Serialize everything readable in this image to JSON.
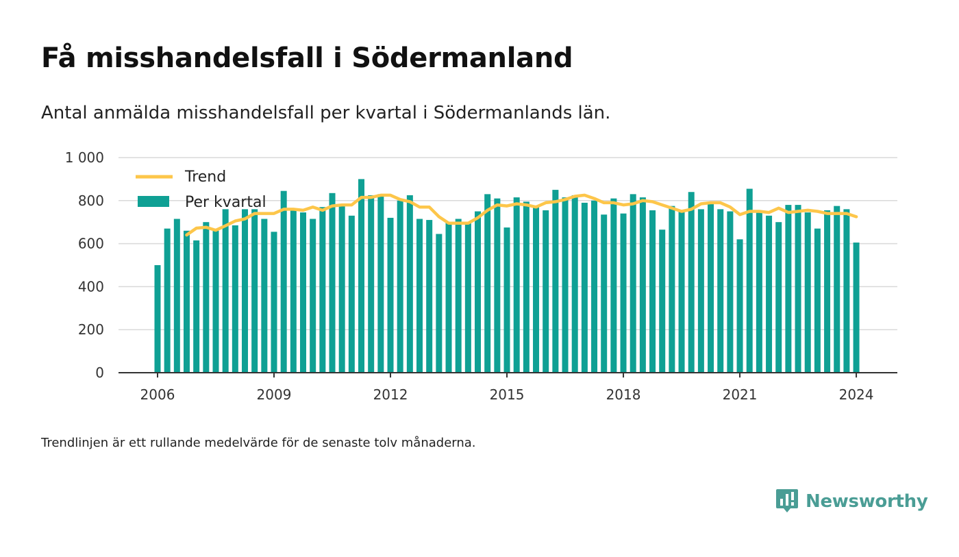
{
  "title": "Få misshandelsfall i Södermanland",
  "subtitle": "Antal anmälda misshandelsfall per kvartal i Södermanlands län.",
  "footnote": "Trendlinjen är ett rullande medelvärde för de senaste tolv månaderna.",
  "brand": {
    "name": "Newsworthy",
    "icon": "newsworthy-logo-icon",
    "color": "#4a9d95"
  },
  "colors": {
    "bars": "#0fa094",
    "trend": "#fdc64a",
    "grid": "#d9d9d9",
    "axis": "#333333"
  },
  "chart_data": {
    "type": "bar",
    "title": "",
    "xlabel": "",
    "ylabel": "",
    "ylim": [
      0,
      1000
    ],
    "y_ticks": [
      0,
      200,
      400,
      600,
      800,
      1000
    ],
    "y_tick_labels": [
      "0",
      "200",
      "400",
      "600",
      "800",
      "1 000"
    ],
    "x_ticks": [
      "2006",
      "2009",
      "2012",
      "2015",
      "2018",
      "2021",
      "2024"
    ],
    "grid": true,
    "legend_position": "top-left",
    "legend": [
      "Trend",
      "Per kvartal"
    ],
    "x_start_quarter": "2006 Q1",
    "series": [
      {
        "name": "Per kvartal",
        "type": "bar",
        "values": [
          500,
          670,
          715,
          660,
          615,
          700,
          660,
          760,
          685,
          760,
          760,
          715,
          655,
          845,
          760,
          745,
          715,
          770,
          835,
          780,
          730,
          900,
          825,
          830,
          720,
          800,
          825,
          715,
          710,
          645,
          700,
          715,
          695,
          750,
          830,
          810,
          675,
          815,
          795,
          770,
          755,
          850,
          815,
          825,
          790,
          800,
          735,
          810,
          740,
          830,
          815,
          755,
          665,
          775,
          750,
          840,
          760,
          790,
          760,
          750,
          620,
          855,
          745,
          730,
          700,
          780,
          780,
          745,
          670,
          755,
          775,
          760,
          605
        ]
      },
      {
        "name": "Trend",
        "type": "line",
        "values": [
          null,
          null,
          null,
          640,
          672,
          676,
          662,
          683,
          705,
          715,
          740,
          740,
          740,
          760,
          760,
          755,
          770,
          755,
          775,
          780,
          780,
          815,
          815,
          825,
          825,
          805,
          795,
          770,
          770,
          725,
          695,
          695,
          695,
          720,
          755,
          780,
          775,
          785,
          780,
          770,
          790,
          795,
          805,
          820,
          825,
          810,
          790,
          790,
          780,
          785,
          800,
          795,
          780,
          765,
          750,
          760,
          785,
          790,
          790,
          770,
          735,
          750,
          750,
          745,
          765,
          745,
          750,
          755,
          750,
          740,
          740,
          740,
          725
        ]
      }
    ]
  }
}
